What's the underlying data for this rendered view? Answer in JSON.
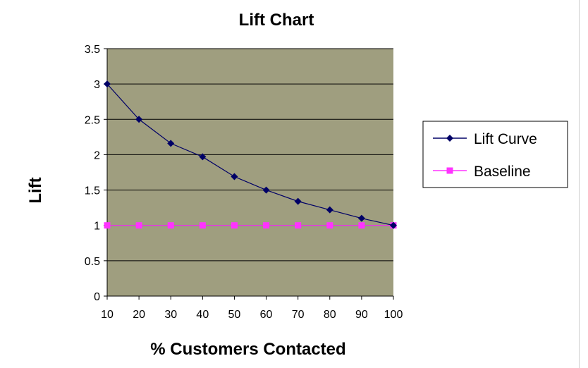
{
  "chart_data": {
    "type": "line",
    "title": "Lift Chart",
    "xlabel": "% Customers Contacted",
    "ylabel": "Lift",
    "x": [
      10,
      20,
      30,
      40,
      50,
      60,
      70,
      80,
      90,
      100
    ],
    "x_ticks": [
      "10",
      "20",
      "30",
      "40",
      "50",
      "60",
      "70",
      "80",
      "90",
      "100"
    ],
    "ylim": [
      0,
      3.5
    ],
    "y_ticks": [
      "0",
      "0.5",
      "1",
      "1.5",
      "2",
      "2.5",
      "3",
      "3.5"
    ],
    "grid": true,
    "plot_background": "#9f9e7f",
    "legend_position": "right",
    "series": [
      {
        "name": "Lift Curve",
        "values": [
          3.0,
          2.5,
          2.16,
          1.97,
          1.69,
          1.5,
          1.34,
          1.22,
          1.1,
          1.0
        ],
        "color": "#000066",
        "marker": "diamond"
      },
      {
        "name": "Baseline",
        "values": [
          1,
          1,
          1,
          1,
          1,
          1,
          1,
          1,
          1,
          1
        ],
        "color": "#ff33ff",
        "marker": "square"
      }
    ]
  }
}
